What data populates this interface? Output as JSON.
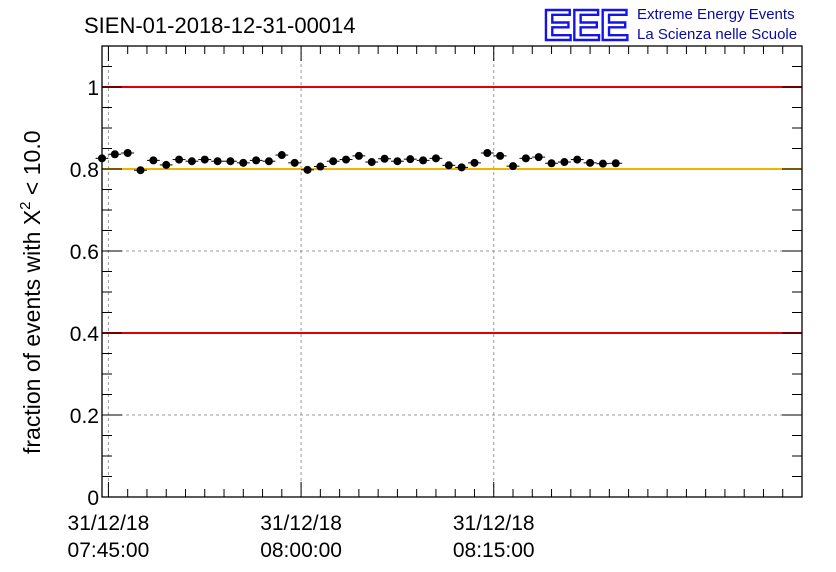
{
  "chart_data": {
    "type": "scatter",
    "title": "SIEN-01-2018-12-31-00014",
    "ylabel": {
      "prefix": "fraction of events with ",
      "symbol": "X",
      "superscript": "2",
      "suffix": " < 10.0"
    },
    "xlabel": "",
    "ylim": [
      0,
      1.1
    ],
    "xlim": [
      0,
      54.5
    ],
    "x_unit": "minutes after 31/12/18 07:44:30",
    "x_ticks": [
      {
        "x": 0.5,
        "date": "31/12/18",
        "time": "07:45:00"
      },
      {
        "x": 15.5,
        "date": "31/12/18",
        "time": "08:00:00"
      },
      {
        "x": 30.5,
        "date": "31/12/18",
        "time": "08:15:00"
      }
    ],
    "y_ticks": [
      {
        "value": 0,
        "label": "0"
      },
      {
        "value": 0.2,
        "label": "0.2"
      },
      {
        "value": 0.4,
        "label": "0.4"
      },
      {
        "value": 0.6,
        "label": "0.6"
      },
      {
        "value": 0.8,
        "label": "0.8"
      },
      {
        "value": 1.0,
        "label": "1"
      }
    ],
    "grid": true,
    "reference_lines": [
      {
        "y": 1.0,
        "color": "#e00000"
      },
      {
        "y": 0.4,
        "color": "#e00000"
      },
      {
        "y": 0.8,
        "color": "#f0b400"
      }
    ],
    "series": [
      {
        "marker_color": "#000000",
        "x": [
          0,
          1,
          2,
          3,
          4,
          5,
          6,
          7,
          8,
          9,
          10,
          11,
          12,
          13,
          14,
          15,
          16,
          17,
          18,
          19,
          20,
          21,
          22,
          23,
          24,
          25,
          26,
          27,
          28,
          29,
          30,
          31,
          32,
          33,
          34,
          35,
          36,
          37,
          38,
          39,
          40
        ],
        "y": [
          0.826,
          0.836,
          0.839,
          0.797,
          0.821,
          0.81,
          0.823,
          0.819,
          0.823,
          0.819,
          0.819,
          0.815,
          0.821,
          0.819,
          0.834,
          0.815,
          0.798,
          0.806,
          0.819,
          0.823,
          0.832,
          0.817,
          0.825,
          0.819,
          0.824,
          0.821,
          0.826,
          0.809,
          0.804,
          0.815,
          0.839,
          0.832,
          0.807,
          0.826,
          0.829,
          0.814,
          0.817,
          0.823,
          0.815,
          0.813,
          0.814
        ],
        "y_err": 0.006
      }
    ]
  },
  "logo": {
    "mark": "EEE",
    "line1": "Extreme Energy Events",
    "line2": "La Scienza nelle Scuole",
    "color": "#1414e6"
  }
}
